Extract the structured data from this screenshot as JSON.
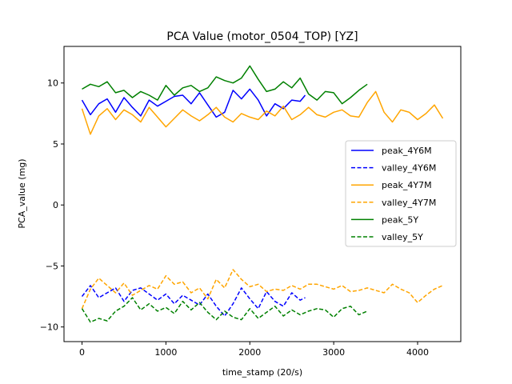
{
  "chart_data": {
    "type": "line",
    "title": "PCA Value (motor_0504_TOP) [YZ]",
    "xlabel": "time_stamp (20/s)",
    "ylabel": "PCA_value (mg)",
    "xlim": [
      -215,
      4515
    ],
    "ylim": [
      -11.2,
      13.0
    ],
    "xticks": [
      0,
      1000,
      2000,
      3000,
      4000
    ],
    "xtick_labels": [
      "0",
      "1000",
      "2000",
      "3000",
      "4000"
    ],
    "yticks": [
      -10,
      -5,
      0,
      5,
      10
    ],
    "ytick_labels": [
      "−10",
      "−5",
      "0",
      "5",
      "10"
    ],
    "grid": false,
    "legend_position": "center-right",
    "series": [
      {
        "name": "peak_4Y6M",
        "color": "#0000ff",
        "dash": "solid",
        "x": [
          0,
          100,
          200,
          300,
          400,
          500,
          600,
          700,
          800,
          900,
          1000,
          1100,
          1200,
          1300,
          1400,
          1500,
          1600,
          1700,
          1800,
          1900,
          2000,
          2100,
          2200,
          2300,
          2400,
          2500,
          2600,
          2660
        ],
        "y": [
          8.6,
          7.4,
          8.3,
          8.7,
          7.6,
          8.8,
          8.0,
          7.3,
          8.6,
          8.1,
          8.5,
          8.9,
          9.0,
          8.3,
          9.2,
          8.2,
          7.2,
          7.6,
          9.4,
          8.7,
          9.5,
          8.6,
          7.3,
          8.3,
          7.9,
          8.6,
          8.5,
          9.0
        ]
      },
      {
        "name": "valley_4Y6M",
        "color": "#0000ff",
        "dash": "dashed",
        "x": [
          0,
          100,
          200,
          300,
          400,
          500,
          600,
          700,
          800,
          900,
          1000,
          1100,
          1200,
          1300,
          1400,
          1500,
          1600,
          1700,
          1800,
          1900,
          2000,
          2100,
          2200,
          2300,
          2400,
          2500,
          2600,
          2660
        ],
        "y": [
          -7.5,
          -6.6,
          -7.6,
          -7.2,
          -6.8,
          -7.9,
          -7.0,
          -6.8,
          -7.3,
          -7.8,
          -7.3,
          -8.1,
          -7.4,
          -7.8,
          -8.2,
          -7.3,
          -8.3,
          -9.1,
          -8.1,
          -6.8,
          -7.7,
          -8.5,
          -7.1,
          -7.9,
          -8.3,
          -7.2,
          -7.8,
          -7.6
        ]
      },
      {
        "name": "peak_4Y7M",
        "color": "#ffa500",
        "dash": "solid",
        "x": [
          0,
          100,
          200,
          300,
          400,
          500,
          600,
          700,
          800,
          900,
          1000,
          1100,
          1200,
          1300,
          1400,
          1500,
          1600,
          1700,
          1800,
          1900,
          2000,
          2100,
          2200,
          2300,
          2400,
          2500,
          2600,
          2700,
          2800,
          2900,
          3000,
          3100,
          3200,
          3300,
          3400,
          3500,
          3600,
          3700,
          3800,
          3900,
          4000,
          4100,
          4200,
          4300
        ],
        "y": [
          7.9,
          5.8,
          7.3,
          7.9,
          7.0,
          7.8,
          7.4,
          6.8,
          8.0,
          7.2,
          6.4,
          7.1,
          7.8,
          7.3,
          6.9,
          7.4,
          8.0,
          7.2,
          6.8,
          7.5,
          7.2,
          7.0,
          7.7,
          7.3,
          8.1,
          7.0,
          7.4,
          8.0,
          7.4,
          7.2,
          7.6,
          7.8,
          7.3,
          7.2,
          8.4,
          9.3,
          7.6,
          6.8,
          7.8,
          7.6,
          7.0,
          7.5,
          8.2,
          7.1
        ]
      },
      {
        "name": "valley_4Y7M",
        "color": "#ffa500",
        "dash": "dashed",
        "x": [
          0,
          100,
          200,
          300,
          400,
          500,
          600,
          700,
          800,
          900,
          1000,
          1100,
          1200,
          1300,
          1400,
          1500,
          1600,
          1700,
          1800,
          1900,
          2000,
          2100,
          2200,
          2300,
          2400,
          2500,
          2600,
          2700,
          2800,
          2900,
          3000,
          3100,
          3200,
          3300,
          3400,
          3500,
          3600,
          3700,
          3800,
          3900,
          4000,
          4100,
          4200,
          4300
        ],
        "y": [
          -8.5,
          -6.9,
          -6.0,
          -6.6,
          -7.2,
          -6.4,
          -7.4,
          -7.0,
          -6.6,
          -6.9,
          -5.8,
          -6.5,
          -6.3,
          -7.2,
          -6.8,
          -7.7,
          -6.1,
          -6.8,
          -5.3,
          -6.1,
          -6.7,
          -6.5,
          -7.1,
          -6.9,
          -7.0,
          -6.6,
          -6.9,
          -6.5,
          -6.5,
          -6.7,
          -6.9,
          -6.6,
          -7.1,
          -7.0,
          -6.8,
          -7.0,
          -7.2,
          -6.5,
          -6.9,
          -7.2,
          -8.0,
          -7.4,
          -6.9,
          -6.6
        ]
      },
      {
        "name": "peak_5Y",
        "color": "#008000",
        "dash": "solid",
        "x": [
          0,
          100,
          200,
          300,
          400,
          500,
          600,
          700,
          800,
          900,
          1000,
          1100,
          1200,
          1300,
          1400,
          1500,
          1600,
          1700,
          1800,
          1900,
          2000,
          2100,
          2200,
          2300,
          2400,
          2500,
          2600,
          2700,
          2800,
          2900,
          3000,
          3100,
          3200,
          3300,
          3400
        ],
        "y": [
          9.5,
          9.9,
          9.7,
          10.1,
          9.2,
          9.4,
          8.8,
          9.3,
          9.0,
          8.6,
          9.8,
          9.0,
          9.6,
          9.8,
          9.3,
          9.6,
          10.5,
          10.2,
          10.0,
          10.4,
          11.4,
          10.3,
          9.3,
          9.5,
          10.1,
          9.6,
          10.4,
          9.1,
          8.6,
          9.3,
          9.2,
          8.3,
          8.8,
          9.4,
          9.9
        ]
      },
      {
        "name": "valley_5Y",
        "color": "#008000",
        "dash": "dashed",
        "x": [
          0,
          100,
          200,
          300,
          400,
          500,
          600,
          700,
          800,
          900,
          1000,
          1100,
          1200,
          1300,
          1400,
          1500,
          1600,
          1700,
          1800,
          1900,
          2000,
          2100,
          2200,
          2300,
          2400,
          2500,
          2600,
          2700,
          2800,
          2900,
          3000,
          3100,
          3200,
          3300,
          3400
        ],
        "y": [
          -8.5,
          -9.6,
          -9.3,
          -9.5,
          -8.7,
          -8.3,
          -7.6,
          -8.6,
          -8.1,
          -8.7,
          -8.4,
          -8.9,
          -7.9,
          -8.6,
          -8.0,
          -8.8,
          -9.4,
          -8.7,
          -9.2,
          -9.4,
          -8.5,
          -9.3,
          -8.8,
          -8.3,
          -9.1,
          -8.6,
          -9.0,
          -8.7,
          -8.5,
          -8.6,
          -9.2,
          -8.5,
          -8.3,
          -9.0,
          -8.7
        ]
      }
    ]
  }
}
